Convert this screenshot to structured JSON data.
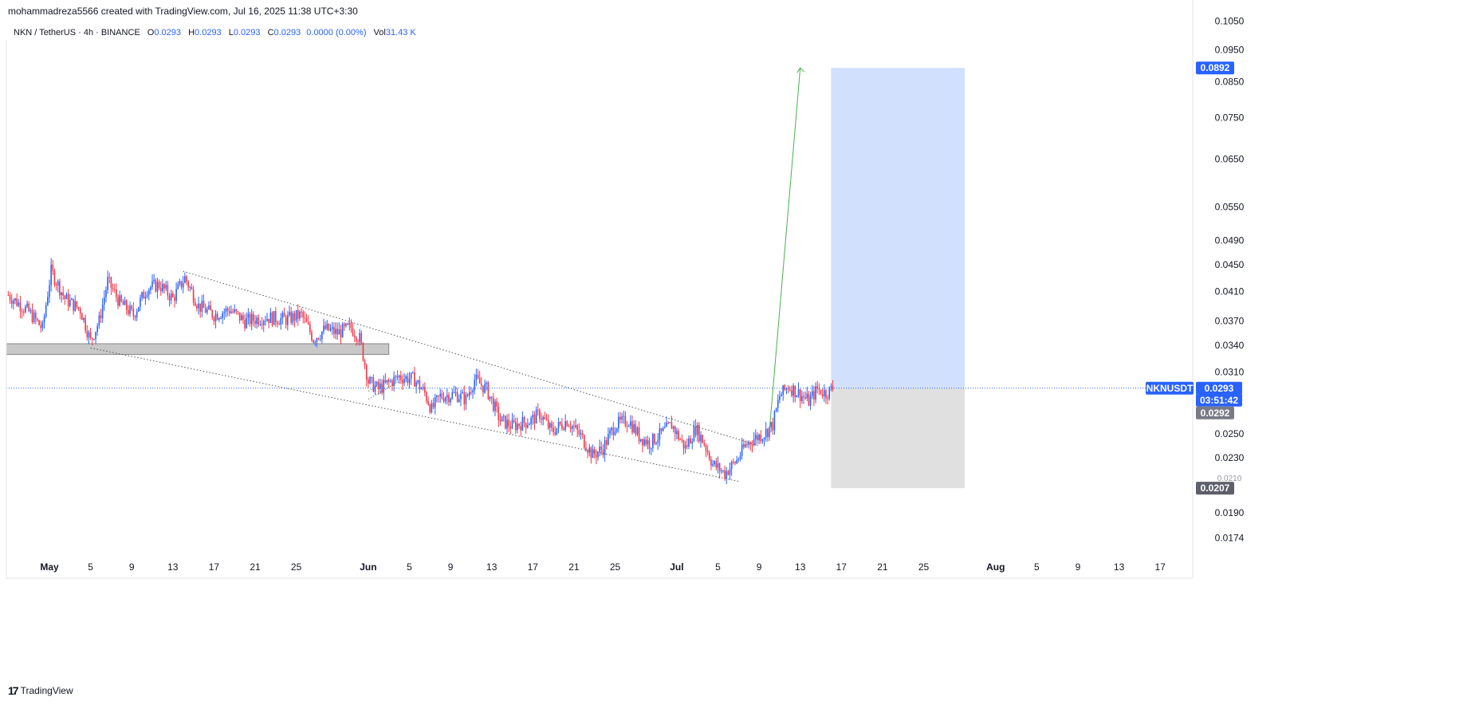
{
  "header": {
    "credit": "mohammadreza5566 created with TradingView.com, Jul 16, 2025 11:38 UTC+3:30"
  },
  "symbol_bar": {
    "title": "NKN / TetherUS · 4h · BINANCE",
    "o_label": "O",
    "o_value": "0.0293",
    "h_label": "H",
    "h_value": "0.0293",
    "l_label": "L",
    "l_value": "0.0293",
    "c_label": "C",
    "c_value": "0.0293",
    "change": "0.0000 (0.00%)",
    "vol_label": "Vol",
    "vol_value": "31.43 K"
  },
  "footer": {
    "logo": "17",
    "brand": "TradingView"
  },
  "colors": {
    "up": "#2962ff",
    "down": "#f23645",
    "target_zone": "#d1e0fd",
    "stop_zone": "#e0e0e0",
    "arrow": "#4caf50",
    "badge_blue": "#2962ff",
    "badge_gray": "#787b86",
    "badge_dark": "#5d606b"
  },
  "chart_data": {
    "type": "candlestick",
    "symbol": "NKNUSDT",
    "timeframe": "4h",
    "scale": "log",
    "y_ticks": [
      "0.1050",
      "0.0950",
      "0.0850",
      "0.0750",
      "0.0650",
      "0.0550",
      "0.0490",
      "0.0450",
      "0.0410",
      "0.0370",
      "0.0340",
      "0.0310",
      "0.0250",
      "0.0230",
      "0.0190",
      "0.0174"
    ],
    "x_ticks": [
      {
        "date": "2025-05-01",
        "label": "May",
        "bold": true
      },
      {
        "date": "2025-05-05",
        "label": "5"
      },
      {
        "date": "2025-05-09",
        "label": "9"
      },
      {
        "date": "2025-05-13",
        "label": "13"
      },
      {
        "date": "2025-05-17",
        "label": "17"
      },
      {
        "date": "2025-05-21",
        "label": "21"
      },
      {
        "date": "2025-05-25",
        "label": "25"
      },
      {
        "date": "2025-06-01",
        "label": "Jun",
        "bold": true
      },
      {
        "date": "2025-06-05",
        "label": "5"
      },
      {
        "date": "2025-06-09",
        "label": "9"
      },
      {
        "date": "2025-06-13",
        "label": "13"
      },
      {
        "date": "2025-06-17",
        "label": "17"
      },
      {
        "date": "2025-06-21",
        "label": "21"
      },
      {
        "date": "2025-06-25",
        "label": "25"
      },
      {
        "date": "2025-07-01",
        "label": "Jul",
        "bold": true
      },
      {
        "date": "2025-07-05",
        "label": "5"
      },
      {
        "date": "2025-07-09",
        "label": "9"
      },
      {
        "date": "2025-07-13",
        "label": "13"
      },
      {
        "date": "2025-07-17",
        "label": "17"
      },
      {
        "date": "2025-07-21",
        "label": "21"
      },
      {
        "date": "2025-07-25",
        "label": "25"
      },
      {
        "date": "2025-08-01",
        "label": "Aug",
        "bold": true
      },
      {
        "date": "2025-08-05",
        "label": "5"
      },
      {
        "date": "2025-08-09",
        "label": "9"
      },
      {
        "date": "2025-08-13",
        "label": "13"
      },
      {
        "date": "2025-08-17",
        "label": "17"
      }
    ],
    "price_path": [
      [
        "2025-04-27T00:00",
        0.0405
      ],
      [
        "2025-04-29T00:00",
        0.0382
      ],
      [
        "2025-04-30T08:00",
        0.036
      ],
      [
        "2025-05-01T04:00",
        0.044
      ],
      [
        "2025-05-02T12:00",
        0.04
      ],
      [
        "2025-05-04T00:00",
        0.0385
      ],
      [
        "2025-05-05T00:00",
        0.0345
      ],
      [
        "2025-05-05T20:00",
        0.037
      ],
      [
        "2025-05-06T16:00",
        0.0425
      ],
      [
        "2025-05-07T20:00",
        0.0395
      ],
      [
        "2025-05-09T04:00",
        0.0378
      ],
      [
        "2025-05-10T12:00",
        0.0415
      ],
      [
        "2025-05-11T16:00",
        0.042
      ],
      [
        "2025-05-13T00:00",
        0.04
      ],
      [
        "2025-05-14T04:00",
        0.043
      ],
      [
        "2025-05-15T12:00",
        0.039
      ],
      [
        "2025-05-17T00:00",
        0.0378
      ],
      [
        "2025-05-18T12:00",
        0.0385
      ],
      [
        "2025-05-20T00:00",
        0.037
      ],
      [
        "2025-05-22T00:00",
        0.0375
      ],
      [
        "2025-05-24T00:00",
        0.0372
      ],
      [
        "2025-05-25T12:00",
        0.0378
      ],
      [
        "2025-05-26T16:00",
        0.0348
      ],
      [
        "2025-05-27T20:00",
        0.036
      ],
      [
        "2025-05-29T00:00",
        0.0355
      ],
      [
        "2025-05-30T08:00",
        0.0362
      ],
      [
        "2025-05-31T04:00",
        0.0348
      ],
      [
        "2025-06-01T00:00",
        0.03
      ],
      [
        "2025-06-02T00:00",
        0.0292
      ],
      [
        "2025-06-04T00:00",
        0.0305
      ],
      [
        "2025-06-05T12:00",
        0.0302
      ],
      [
        "2025-06-06T12:00",
        0.0288
      ],
      [
        "2025-06-07T04:00",
        0.0272
      ],
      [
        "2025-06-08T00:00",
        0.0285
      ],
      [
        "2025-06-09T12:00",
        0.0287
      ],
      [
        "2025-06-10T12:00",
        0.0282
      ],
      [
        "2025-06-11T08:00",
        0.0302
      ],
      [
        "2025-06-12T12:00",
        0.0292
      ],
      [
        "2025-06-13T20:00",
        0.0262
      ],
      [
        "2025-06-15T00:00",
        0.0257
      ],
      [
        "2025-06-16T20:00",
        0.0262
      ],
      [
        "2025-06-17T16:00",
        0.0268
      ],
      [
        "2025-06-18T20:00",
        0.0252
      ],
      [
        "2025-06-20T08:00",
        0.0262
      ],
      [
        "2025-06-21T16:00",
        0.0248
      ],
      [
        "2025-06-22T20:00",
        0.0232
      ],
      [
        "2025-06-23T20:00",
        0.0238
      ],
      [
        "2025-06-25T00:00",
        0.0258
      ],
      [
        "2025-06-26T08:00",
        0.0262
      ],
      [
        "2025-06-27T08:00",
        0.0248
      ],
      [
        "2025-06-28T08:00",
        0.0242
      ],
      [
        "2025-06-29T12:00",
        0.025
      ],
      [
        "2025-06-30T12:00",
        0.0258
      ],
      [
        "2025-07-01T00:00",
        0.025
      ],
      [
        "2025-07-01T20:00",
        0.0238
      ],
      [
        "2025-07-02T20:00",
        0.0255
      ],
      [
        "2025-07-03T16:00",
        0.0242
      ],
      [
        "2025-07-04T12:00",
        0.0225
      ],
      [
        "2025-07-05T16:00",
        0.0218
      ],
      [
        "2025-07-06T20:00",
        0.0228
      ],
      [
        "2025-07-07T16:00",
        0.024
      ],
      [
        "2025-07-08T12:00",
        0.0246
      ],
      [
        "2025-07-09T12:00",
        0.025
      ],
      [
        "2025-07-10T08:00",
        0.0258
      ],
      [
        "2025-07-11T00:00",
        0.0285
      ],
      [
        "2025-07-11T20:00",
        0.0295
      ],
      [
        "2025-07-12T20:00",
        0.0288
      ],
      [
        "2025-07-13T20:00",
        0.028
      ],
      [
        "2025-07-14T16:00",
        0.0292
      ],
      [
        "2025-07-15T12:00",
        0.0288
      ],
      [
        "2025-07-16T04:00",
        0.0293
      ]
    ],
    "drawings": {
      "support_zone": {
        "from": "2025-04-27",
        "to": "2025-06-03",
        "top": 0.0342,
        "bottom": 0.0335
      },
      "upper_trendline": {
        "from": [
          "2025-05-14",
          0.044
        ],
        "to": [
          "2025-07-09",
          0.024
        ]
      },
      "lower_trendline": {
        "from": [
          "2025-05-05",
          0.0337
        ],
        "to": [
          "2025-07-07",
          0.0212
        ]
      },
      "flag_upper": {
        "from": [
          "2025-06-01",
          0.029
        ],
        "to": [
          "2025-06-03",
          0.0302
        ]
      },
      "flag_lower": {
        "from": [
          "2025-06-01",
          0.0282
        ],
        "to": [
          "2025-06-04",
          0.03
        ]
      },
      "projection_arrow": {
        "from": [
          "2025-07-10",
          0.0252
        ],
        "to": [
          "2025-07-13",
          0.0892
        ]
      },
      "position": {
        "from": "2025-07-16",
        "to": "2025-07-29",
        "entry": 0.0293,
        "target": 0.0892,
        "stop": 0.0207
      }
    },
    "price_labels": {
      "target": "0.0892",
      "last_symbol": "NKNUSDT",
      "last_price": "0.0293",
      "countdown": "03:51:42",
      "prev_price": "0.0292",
      "stop": "0.0207",
      "hidden_tick": "0.0210"
    }
  }
}
